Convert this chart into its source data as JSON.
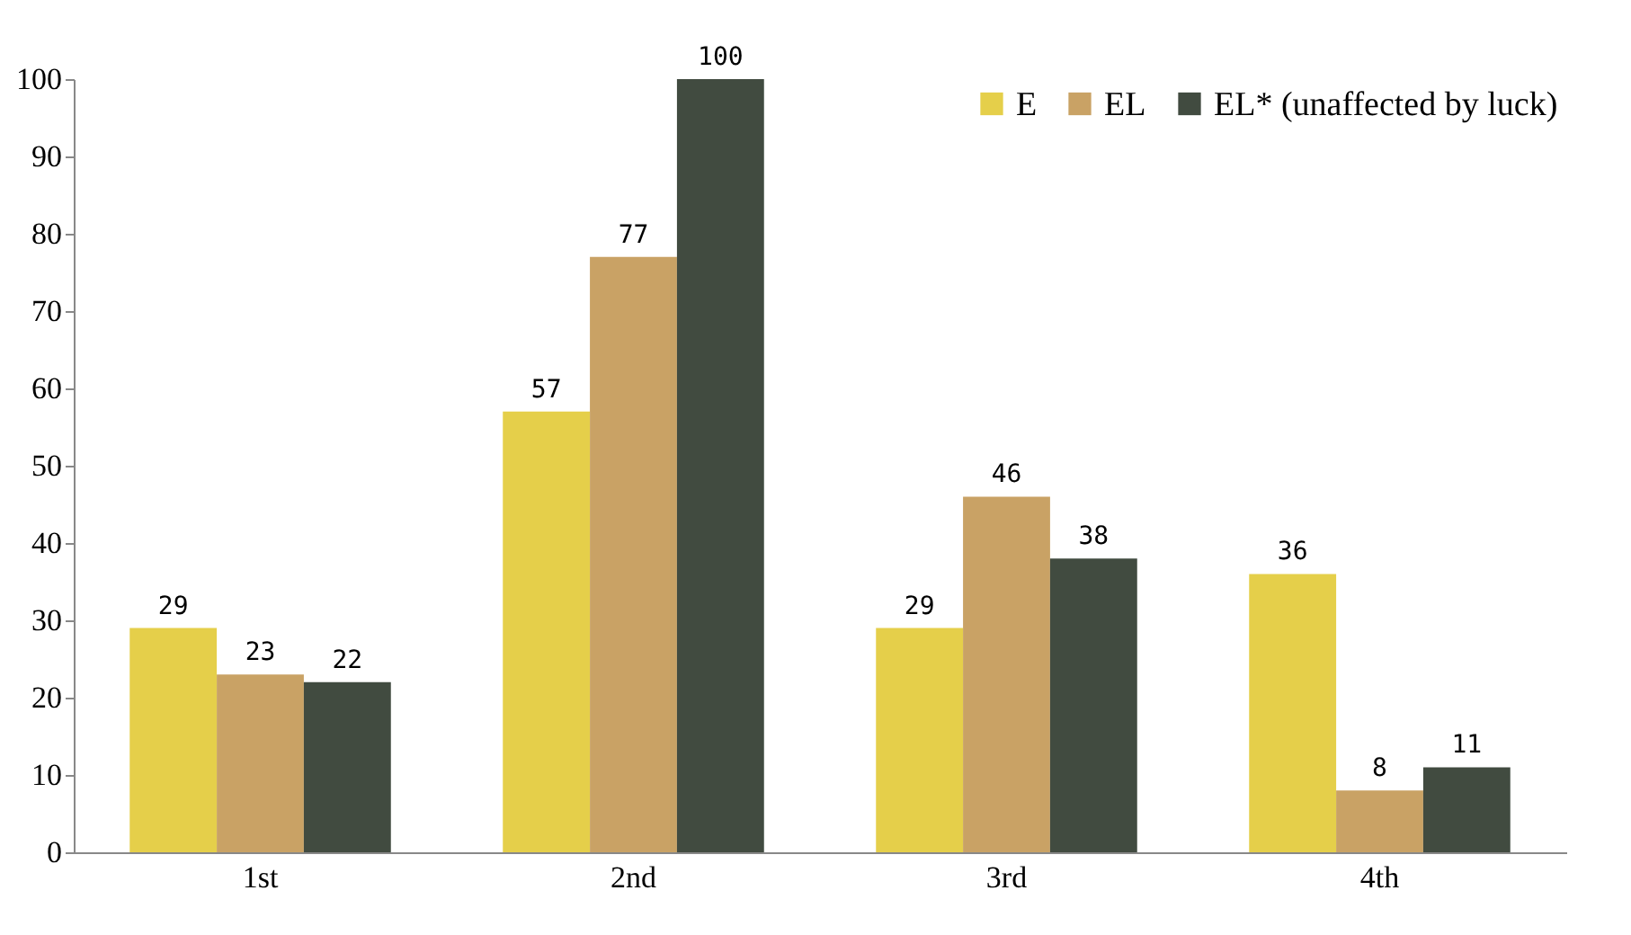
{
  "chart_data": {
    "type": "bar",
    "categories": [
      "1st",
      "2nd",
      "3rd",
      "4th"
    ],
    "series": [
      {
        "name": "E",
        "color": "#e5cf4a",
        "values": [
          29,
          57,
          29,
          36
        ]
      },
      {
        "name": "EL",
        "color": "#c9a265",
        "values": [
          23,
          77,
          46,
          8
        ]
      },
      {
        "name": "EL* (unaffected by luck)",
        "color": "#414b40",
        "values": [
          22,
          100,
          38,
          11
        ]
      }
    ],
    "ylim": [
      0,
      100
    ],
    "yticks": [
      0,
      10,
      20,
      30,
      40,
      50,
      60,
      70,
      80,
      90,
      100
    ],
    "data_labels": true,
    "legend": "top right"
  }
}
